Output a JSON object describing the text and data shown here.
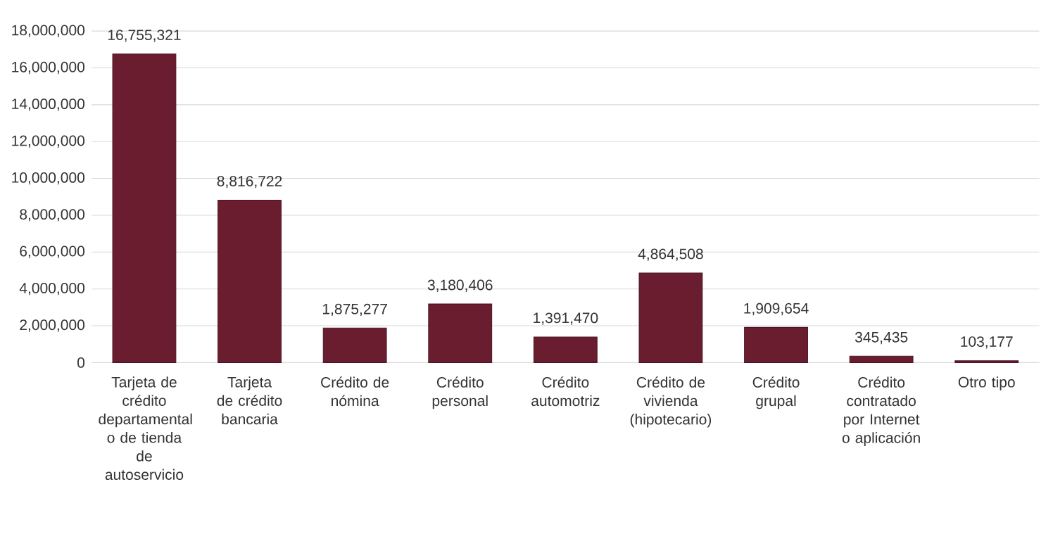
{
  "chart_data": {
    "type": "bar",
    "categories": [
      "Tarjeta de crédito departamental o de tienda de autoservicio",
      "Tarjeta de crédito bancaria",
      "Crédito de nómina",
      "Crédito personal",
      "Crédito automotriz",
      "Crédito de vivienda (hipotecario)",
      "Crédito grupal",
      "Crédito contratado por Internet o aplicación",
      "Otro tipo"
    ],
    "values": [
      16755321,
      8816722,
      1875277,
      3180406,
      1391470,
      4864508,
      1909654,
      345435,
      103177
    ],
    "value_labels": [
      "16,755,321",
      "8,816,722",
      "1,875,277",
      "3,180,406",
      "1,391,470",
      "4,864,508",
      "1,909,654",
      "345,435",
      "103,177"
    ],
    "color": "#6b1d30",
    "ylim": [
      0,
      18000000
    ],
    "yticks": [
      0,
      {
        "value": 2000000,
        "label": "2,000,000"
      },
      {
        "value": 4000000,
        "label": "4,000,000"
      },
      {
        "value": 6000000,
        "label": "6,000,000"
      },
      {
        "value": 8000000,
        "label": "8,000,000"
      },
      {
        "value": 10000000,
        "label": "10,000,000"
      },
      {
        "value": 12000000,
        "label": "12,000,000"
      },
      {
        "value": 14000000,
        "label": "14,000,000"
      },
      {
        "value": 16000000,
        "label": "16,000,000"
      },
      {
        "value": 18000000,
        "label": "18,000,000"
      }
    ],
    "grid": "y"
  }
}
